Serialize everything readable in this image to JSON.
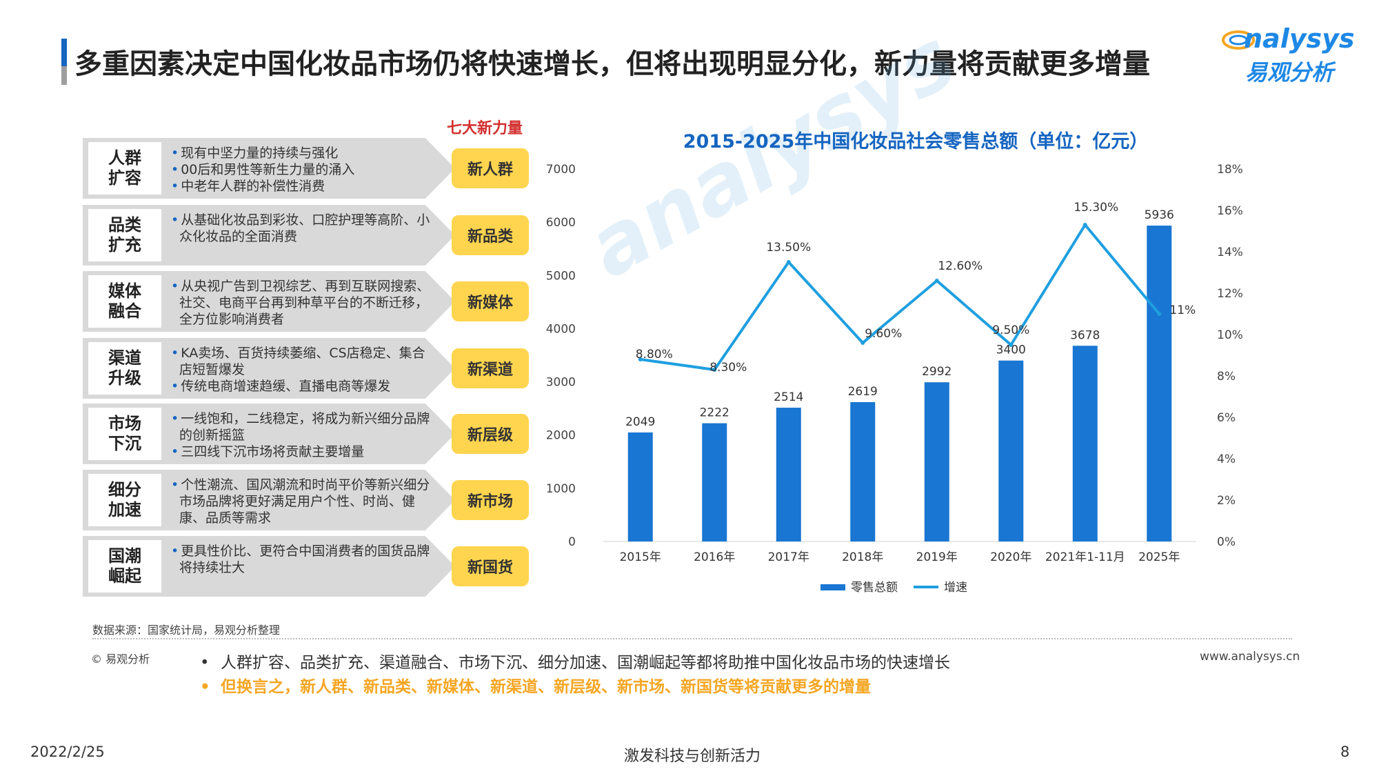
{
  "header": {
    "title": "多重因素决定中国化妆品市场仍将快速增长，但将出现明显分化，新力量将贡献更多增量",
    "logo_en": "nalysys",
    "logo_cn": "易观分析"
  },
  "factors": {
    "heading": "七大新力量",
    "rows": [
      {
        "label": "人群\n扩容",
        "items": [
          "现有中坚力量的持续与强化",
          "00后和男性等新生力量的涌入",
          "中老年人群的补偿性消费"
        ],
        "tag": "新人群"
      },
      {
        "label": "品类\n扩充",
        "items": [
          "从基础化妆品到彩妆、口腔护理等高阶、小众化妆品的全面消费"
        ],
        "tag": "新品类"
      },
      {
        "label": "媒体\n融合",
        "items": [
          "从央视广告到卫视综艺、再到互联网搜索、社交、电商平台再到种草平台的不断迁移，全方位影响消费者"
        ],
        "tag": "新媒体"
      },
      {
        "label": "渠道\n升级",
        "items": [
          "KA卖场、百货持续萎缩、CS店稳定、集合店短暂爆发",
          "传统电商增速趋缓、直播电商等爆发"
        ],
        "tag": "新渠道"
      },
      {
        "label": "市场\n下沉",
        "items": [
          "一线饱和，二线稳定，将成为新兴细分品牌的创新摇篮",
          "三四线下沉市场将贡献主要增量"
        ],
        "tag": "新层级"
      },
      {
        "label": "细分\n加速",
        "items": [
          "个性潮流、国风潮流和时尚平价等新兴细分市场品牌将更好满足用户个性、时尚、健康、品质等需求"
        ],
        "tag": "新市场"
      },
      {
        "label": "国潮\n崛起",
        "items": [
          "更具性价比、更符合中国消费者的国货品牌将持续壮大"
        ],
        "tag": "新国货"
      }
    ]
  },
  "chart_data": {
    "type": "bar",
    "title": "2015-2025年中国化妆品社会零售总额（单位：亿元）",
    "categories": [
      "2015年",
      "2016年",
      "2017年",
      "2018年",
      "2019年",
      "2020年",
      "2021年1-11月",
      "2025年"
    ],
    "series": [
      {
        "name": "零售总额",
        "type": "bar",
        "axis": "left",
        "values": [
          2049,
          2222,
          2514,
          2619,
          2992,
          3400,
          3678,
          5936
        ],
        "labels": [
          "2049",
          "2222",
          "2514",
          "2619",
          "2992",
          "3400",
          "3678",
          "5936"
        ]
      },
      {
        "name": "增速",
        "type": "line",
        "axis": "right",
        "values": [
          8.8,
          8.3,
          13.5,
          9.6,
          12.6,
          9.5,
          15.3,
          11
        ],
        "labels": [
          "8.80%",
          "8.30%",
          "13.50%",
          "9.60%",
          "12.60%",
          "9.50%",
          "15.30%",
          "11%"
        ]
      }
    ],
    "y_left": {
      "range": [
        0,
        7000
      ],
      "ticks": [
        "0",
        "1000",
        "2000",
        "3000",
        "4000",
        "5000",
        "6000",
        "7000"
      ]
    },
    "y_right": {
      "range": [
        0,
        18
      ],
      "ticks": [
        "0%",
        "2%",
        "4%",
        "6%",
        "8%",
        "10%",
        "12%",
        "14%",
        "16%",
        "18%"
      ]
    },
    "legend": "bottom",
    "grid": false,
    "colors": {
      "bar": "#1976d2",
      "line": "#1e9fe0"
    }
  },
  "footer": {
    "source": "数据来源：国家统计局，易观分析整理",
    "copyright": "© 易观分析",
    "site": "www.analysys.cn",
    "bullet1": "人群扩容、品类扩充、渠道融合、市场下沉、细分加速、国潮崛起等都将助推中国化妆品市场的快速增长",
    "bullet2": "但换言之，新人群、新品类、新媒体、新渠道、新层级、新市场、新国货等将贡献更多的增量",
    "date": "2022/2/25",
    "slogan": "激发科技与创新活力",
    "page": "8"
  }
}
